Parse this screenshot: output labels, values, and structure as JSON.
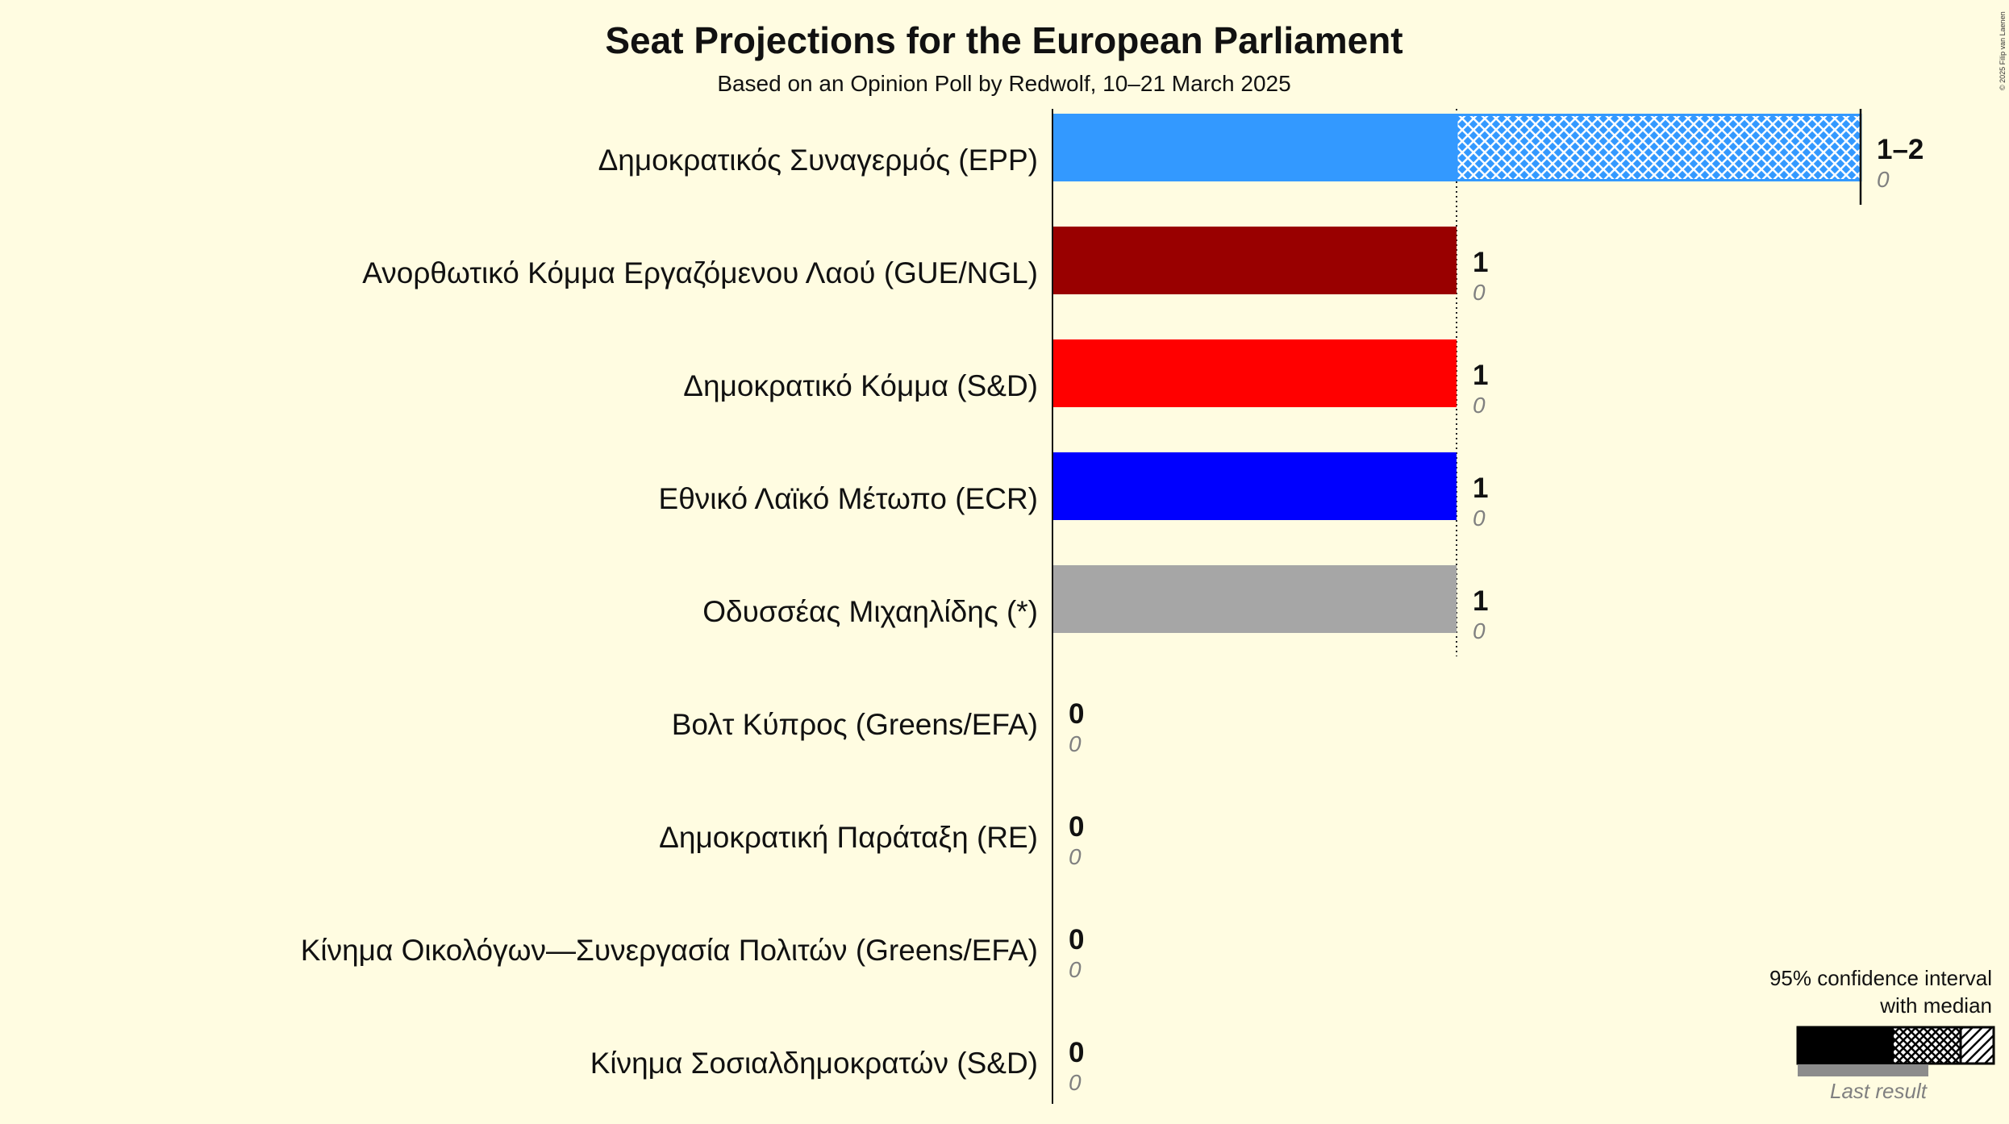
{
  "title": "Seat Projections for the European Parliament",
  "subtitle": "Based on an Opinion Poll by Redwolf, 10–21 March 2025",
  "copyright": "© 2025 Filip van Laenen",
  "legend": {
    "line1": "95% confidence interval",
    "line2": "with median",
    "last_result": "Last result"
  },
  "colors": {
    "background": "#FFFCE1",
    "text": "#111111",
    "secondary_text": "#808080",
    "last_result_bar": "#8C8C8C"
  },
  "chart_data": {
    "type": "bar",
    "orientation": "horizontal",
    "xlim": [
      0,
      2
    ],
    "legend_position": "bottom-right",
    "parties": [
      {
        "party": "Δημοκρατικός Συναγερμός (EPP)",
        "ci_low": 1,
        "median": 2,
        "ci_high": 2,
        "seats_label": "1–2",
        "last_result": 0,
        "color": "#3399FF"
      },
      {
        "party": "Ανορθωτικό Κόμμα Εργαζόμενου Λαού (GUE/NGL)",
        "ci_low": 1,
        "median": 1,
        "ci_high": 1,
        "seats_label": "1",
        "last_result": 0,
        "color": "#990000"
      },
      {
        "party": "Δημοκρατικό Κόμμα (S&D)",
        "ci_low": 1,
        "median": 1,
        "ci_high": 1,
        "seats_label": "1",
        "last_result": 0,
        "color": "#FF0000"
      },
      {
        "party": "Εθνικό Λαϊκό Μέτωπο (ECR)",
        "ci_low": 1,
        "median": 1,
        "ci_high": 1,
        "seats_label": "1",
        "last_result": 0,
        "color": "#0000FF"
      },
      {
        "party": "Οδυσσέας Μιχαηλίδης (*)",
        "ci_low": 1,
        "median": 1,
        "ci_high": 1,
        "seats_label": "1",
        "last_result": 0,
        "color": "#A6A6A6"
      },
      {
        "party": "Βολτ Κύπρος (Greens/EFA)",
        "ci_low": 0,
        "median": 0,
        "ci_high": 0,
        "seats_label": "0",
        "last_result": 0
      },
      {
        "party": "Δημοκρατική Παράταξη (RE)",
        "ci_low": 0,
        "median": 0,
        "ci_high": 0,
        "seats_label": "0",
        "last_result": 0
      },
      {
        "party": "Κίνημα Οικολόγων—Συνεργασία Πολιτών (Greens/EFA)",
        "ci_low": 0,
        "median": 0,
        "ci_high": 0,
        "seats_label": "0",
        "last_result": 0
      },
      {
        "party": "Κίνημα Σοσιαλδημοκρατών (S&D)",
        "ci_low": 0,
        "median": 0,
        "ci_high": 0,
        "seats_label": "0",
        "last_result": 0
      }
    ]
  }
}
